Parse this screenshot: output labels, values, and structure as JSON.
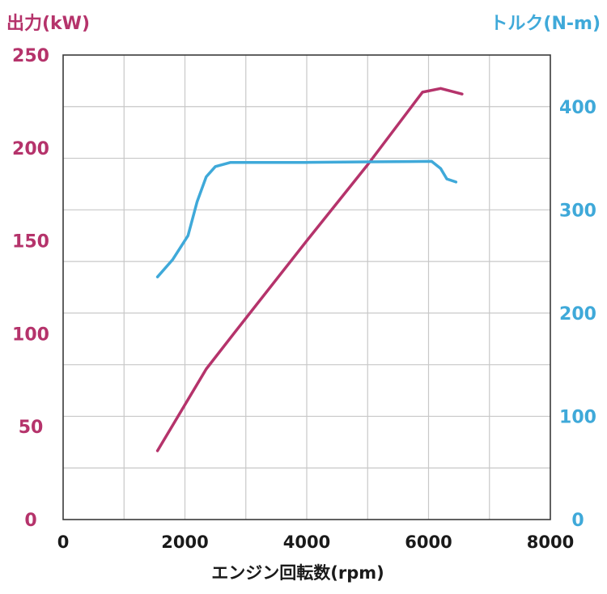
{
  "chart_data": {
    "type": "line",
    "title": "",
    "xlabel": "エンジン回転数(rpm)",
    "ylabel_left": "出力(kW)",
    "ylabel_right": "トルク(N-m)",
    "xlim": [
      0,
      8000
    ],
    "ylim_left": [
      0,
      250
    ],
    "ylim_right": [
      0,
      450
    ],
    "x_ticks": [
      "0",
      "2000",
      "4000",
      "6000",
      "8000"
    ],
    "y_left_ticks": [
      "0",
      "50",
      "100",
      "150",
      "200",
      "250"
    ],
    "y_right_ticks": [
      "0",
      "100",
      "200",
      "300",
      "400"
    ],
    "grid": true,
    "colors": {
      "power": "#b5336b",
      "torque": "#3fa9d9",
      "grid": "#c8c8c8",
      "axis": "#3a3a3a"
    },
    "series": [
      {
        "axis": "left",
        "color": "#b5336b",
        "points": [
          [
            1550,
            37
          ],
          [
            2350,
            81
          ],
          [
            2800,
            100
          ],
          [
            4000,
            150
          ],
          [
            5000,
            191
          ],
          [
            5900,
            230
          ],
          [
            6200,
            232
          ],
          [
            6550,
            229
          ]
        ]
      },
      {
        "axis": "right",
        "color": "#3fa9d9",
        "points": [
          [
            1550,
            235
          ],
          [
            1800,
            252
          ],
          [
            2050,
            275
          ],
          [
            2200,
            308
          ],
          [
            2350,
            332
          ],
          [
            2500,
            342
          ],
          [
            2750,
            346
          ],
          [
            4000,
            346
          ],
          [
            5000,
            346.5
          ],
          [
            6050,
            347
          ],
          [
            6200,
            340
          ],
          [
            6300,
            330
          ],
          [
            6450,
            327
          ]
        ]
      }
    ]
  }
}
